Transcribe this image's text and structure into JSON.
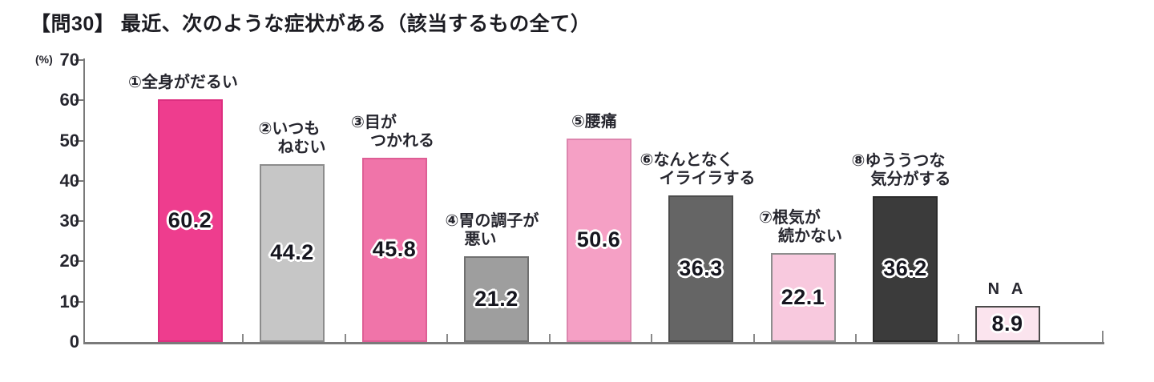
{
  "title": "【問30】 最近、次のような症状がある（該当するもの全て）",
  "chart_data": {
    "type": "bar",
    "title": "【問30】 最近、次のような症状がある（該当するもの全て）",
    "unit_label": "(%)",
    "ylim": [
      0,
      70
    ],
    "yticks": [
      70,
      60,
      50,
      40,
      30,
      20,
      10,
      0
    ],
    "grid": false,
    "legend_position": "none",
    "categories": [
      "①全身がだるい",
      "②いつもねむい",
      "③目がつかれる",
      "④胃の調子が悪い",
      "⑤腰痛",
      "⑥なんとなくイライラする",
      "⑦根気が続かない",
      "⑧ゆううつな気分がする",
      "N A"
    ],
    "values": [
      60.2,
      44.2,
      45.8,
      21.2,
      50.6,
      36.3,
      22.1,
      36.2,
      8.9
    ],
    "bars": [
      {
        "label_lines": [
          "①全身がだるい"
        ],
        "value": "60.2",
        "fill": "#ee3d8e",
        "border": "#dd2f80"
      },
      {
        "label_lines": [
          "②いつも",
          "ねむい"
        ],
        "value": "44.2",
        "fill": "#c6c6c6",
        "border": "#8c8c8c"
      },
      {
        "label_lines": [
          "③目が",
          "つかれる"
        ],
        "value": "45.8",
        "fill": "#f074a9",
        "border": "#de5e95"
      },
      {
        "label_lines": [
          "④胃の調子が",
          "悪い"
        ],
        "value": "21.2",
        "fill": "#9e9e9e",
        "border": "#707070"
      },
      {
        "label_lines": [
          "⑤腰痛"
        ],
        "value": "50.6",
        "fill": "#f5a0c5",
        "border": "#dd86ae"
      },
      {
        "label_lines": [
          "⑥なんとなく",
          "イライラする"
        ],
        "value": "36.3",
        "fill": "#656565",
        "border": "#4c4c4c"
      },
      {
        "label_lines": [
          "⑦根気が",
          "続かない"
        ],
        "value": "22.1",
        "fill": "#f8c9de",
        "border": "#8e8e8e"
      },
      {
        "label_lines": [
          "⑧ゆううつな",
          "気分がする"
        ],
        "value": "36.2",
        "fill": "#3b3b3b",
        "border": "#2b2b2b"
      },
      {
        "label_lines": [
          "N A"
        ],
        "value": "8.9",
        "fill": "#fbe4ee",
        "border": "#4a4a4a",
        "label_centered": true
      }
    ]
  }
}
